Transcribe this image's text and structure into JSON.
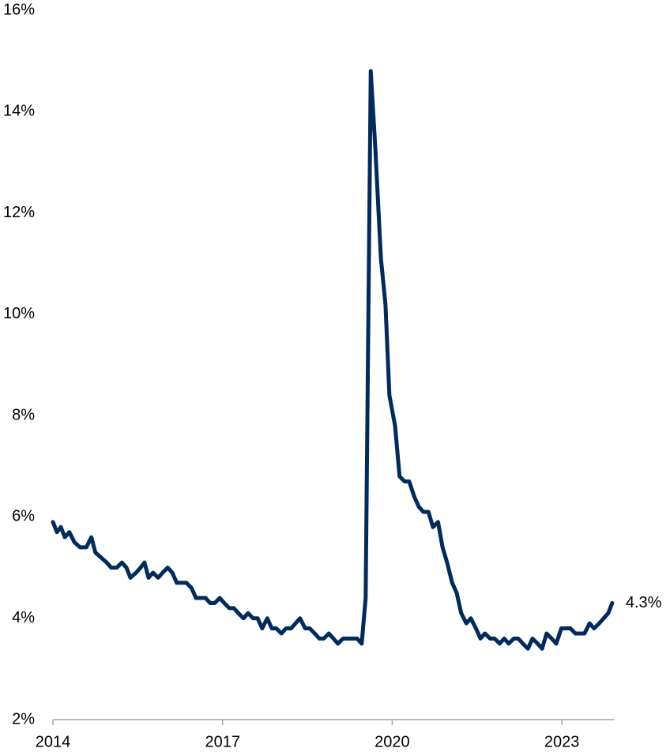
{
  "chart_data": {
    "type": "line",
    "x": [
      2014.0,
      2014.07,
      2014.14,
      2014.21,
      2014.29,
      2014.38,
      2014.48,
      2014.59,
      2014.68,
      2014.75,
      2014.85,
      2014.95,
      2015.03,
      2015.13,
      2015.22,
      2015.3,
      2015.37,
      2015.47,
      2015.55,
      2015.62,
      2015.69,
      2015.77,
      2015.86,
      2015.94,
      2016.03,
      2016.11,
      2016.19,
      2016.36,
      2016.45,
      2016.53,
      2016.7,
      2016.78,
      2016.86,
      2016.95,
      2017.03,
      2017.12,
      2017.2,
      2017.28,
      2017.37,
      2017.45,
      2017.54,
      2017.62,
      2017.7,
      2017.79,
      2017.87,
      2017.95,
      2018.04,
      2018.12,
      2018.21,
      2018.29,
      2018.37,
      2018.46,
      2018.54,
      2018.63,
      2018.71,
      2018.79,
      2018.88,
      2018.96,
      2019.04,
      2019.13,
      2019.21,
      2019.3,
      2019.38,
      2019.46,
      2019.53,
      2019.62,
      2019.7,
      2019.8,
      2019.88,
      2019.95,
      2020.05,
      2020.13,
      2020.22,
      2020.3,
      2020.39,
      2020.47,
      2020.55,
      2020.64,
      2020.72,
      2020.81,
      2020.89,
      2020.97,
      2021.06,
      2021.14,
      2021.22,
      2021.31,
      2021.39,
      2021.48,
      2021.56,
      2021.64,
      2021.73,
      2021.81,
      2021.9,
      2021.98,
      2022.06,
      2022.15,
      2022.23,
      2022.31,
      2022.4,
      2022.48,
      2022.57,
      2022.65,
      2022.73,
      2022.82,
      2022.9,
      2022.99,
      2023.07,
      2023.15,
      2023.24,
      2023.32,
      2023.4,
      2023.49,
      2023.57,
      2023.66,
      2023.74,
      2023.82,
      2023.89
    ],
    "series": [
      {
        "color": "#002b5c",
        "values": [
          5.9,
          5.7,
          5.8,
          5.6,
          5.7,
          5.5,
          5.4,
          5.4,
          5.6,
          5.3,
          5.2,
          5.1,
          5.0,
          5.0,
          5.1,
          5.0,
          4.8,
          4.9,
          5.0,
          5.1,
          4.8,
          4.9,
          4.8,
          4.9,
          5.0,
          4.9,
          4.7,
          4.7,
          4.6,
          4.4,
          4.4,
          4.3,
          4.3,
          4.4,
          4.3,
          4.2,
          4.2,
          4.1,
          4.0,
          4.1,
          4.0,
          4.0,
          3.8,
          4.0,
          3.8,
          3.8,
          3.7,
          3.8,
          3.8,
          3.9,
          4.0,
          3.8,
          3.8,
          3.7,
          3.6,
          3.6,
          3.7,
          3.6,
          3.5,
          3.6,
          3.6,
          3.6,
          3.6,
          3.5,
          4.4,
          14.8,
          13.3,
          11.1,
          10.2,
          8.4,
          7.8,
          6.8,
          6.7,
          6.7,
          6.4,
          6.2,
          6.1,
          6.1,
          5.8,
          5.9,
          5.4,
          5.1,
          4.7,
          4.5,
          4.1,
          3.9,
          4.0,
          3.8,
          3.6,
          3.7,
          3.6,
          3.6,
          3.5,
          3.6,
          3.5,
          3.6,
          3.6,
          3.5,
          3.4,
          3.6,
          3.5,
          3.4,
          3.7,
          3.6,
          3.5,
          3.8,
          3.8,
          3.8,
          3.7,
          3.7,
          3.7,
          3.9,
          3.8,
          3.9,
          4.0,
          4.1,
          4.3
        ]
      }
    ],
    "annotations": [
      {
        "text": "4.3%",
        "x": 2023.89,
        "y": 4.3
      }
    ],
    "xlim": [
      2014,
      2023.92
    ],
    "xticks": [
      2014,
      2017,
      2020,
      2023
    ],
    "ylim": [
      2,
      16
    ],
    "yticks": [
      {
        "value": 2,
        "label": "2%"
      },
      {
        "value": 4,
        "label": "4%"
      },
      {
        "value": 6,
        "label": "6%"
      },
      {
        "value": 8,
        "label": "8%"
      },
      {
        "value": 10,
        "label": "10%"
      },
      {
        "value": 12,
        "label": "12%"
      },
      {
        "value": 14,
        "label": "14%"
      },
      {
        "value": 16,
        "label": "16%"
      }
    ],
    "grid": false
  }
}
